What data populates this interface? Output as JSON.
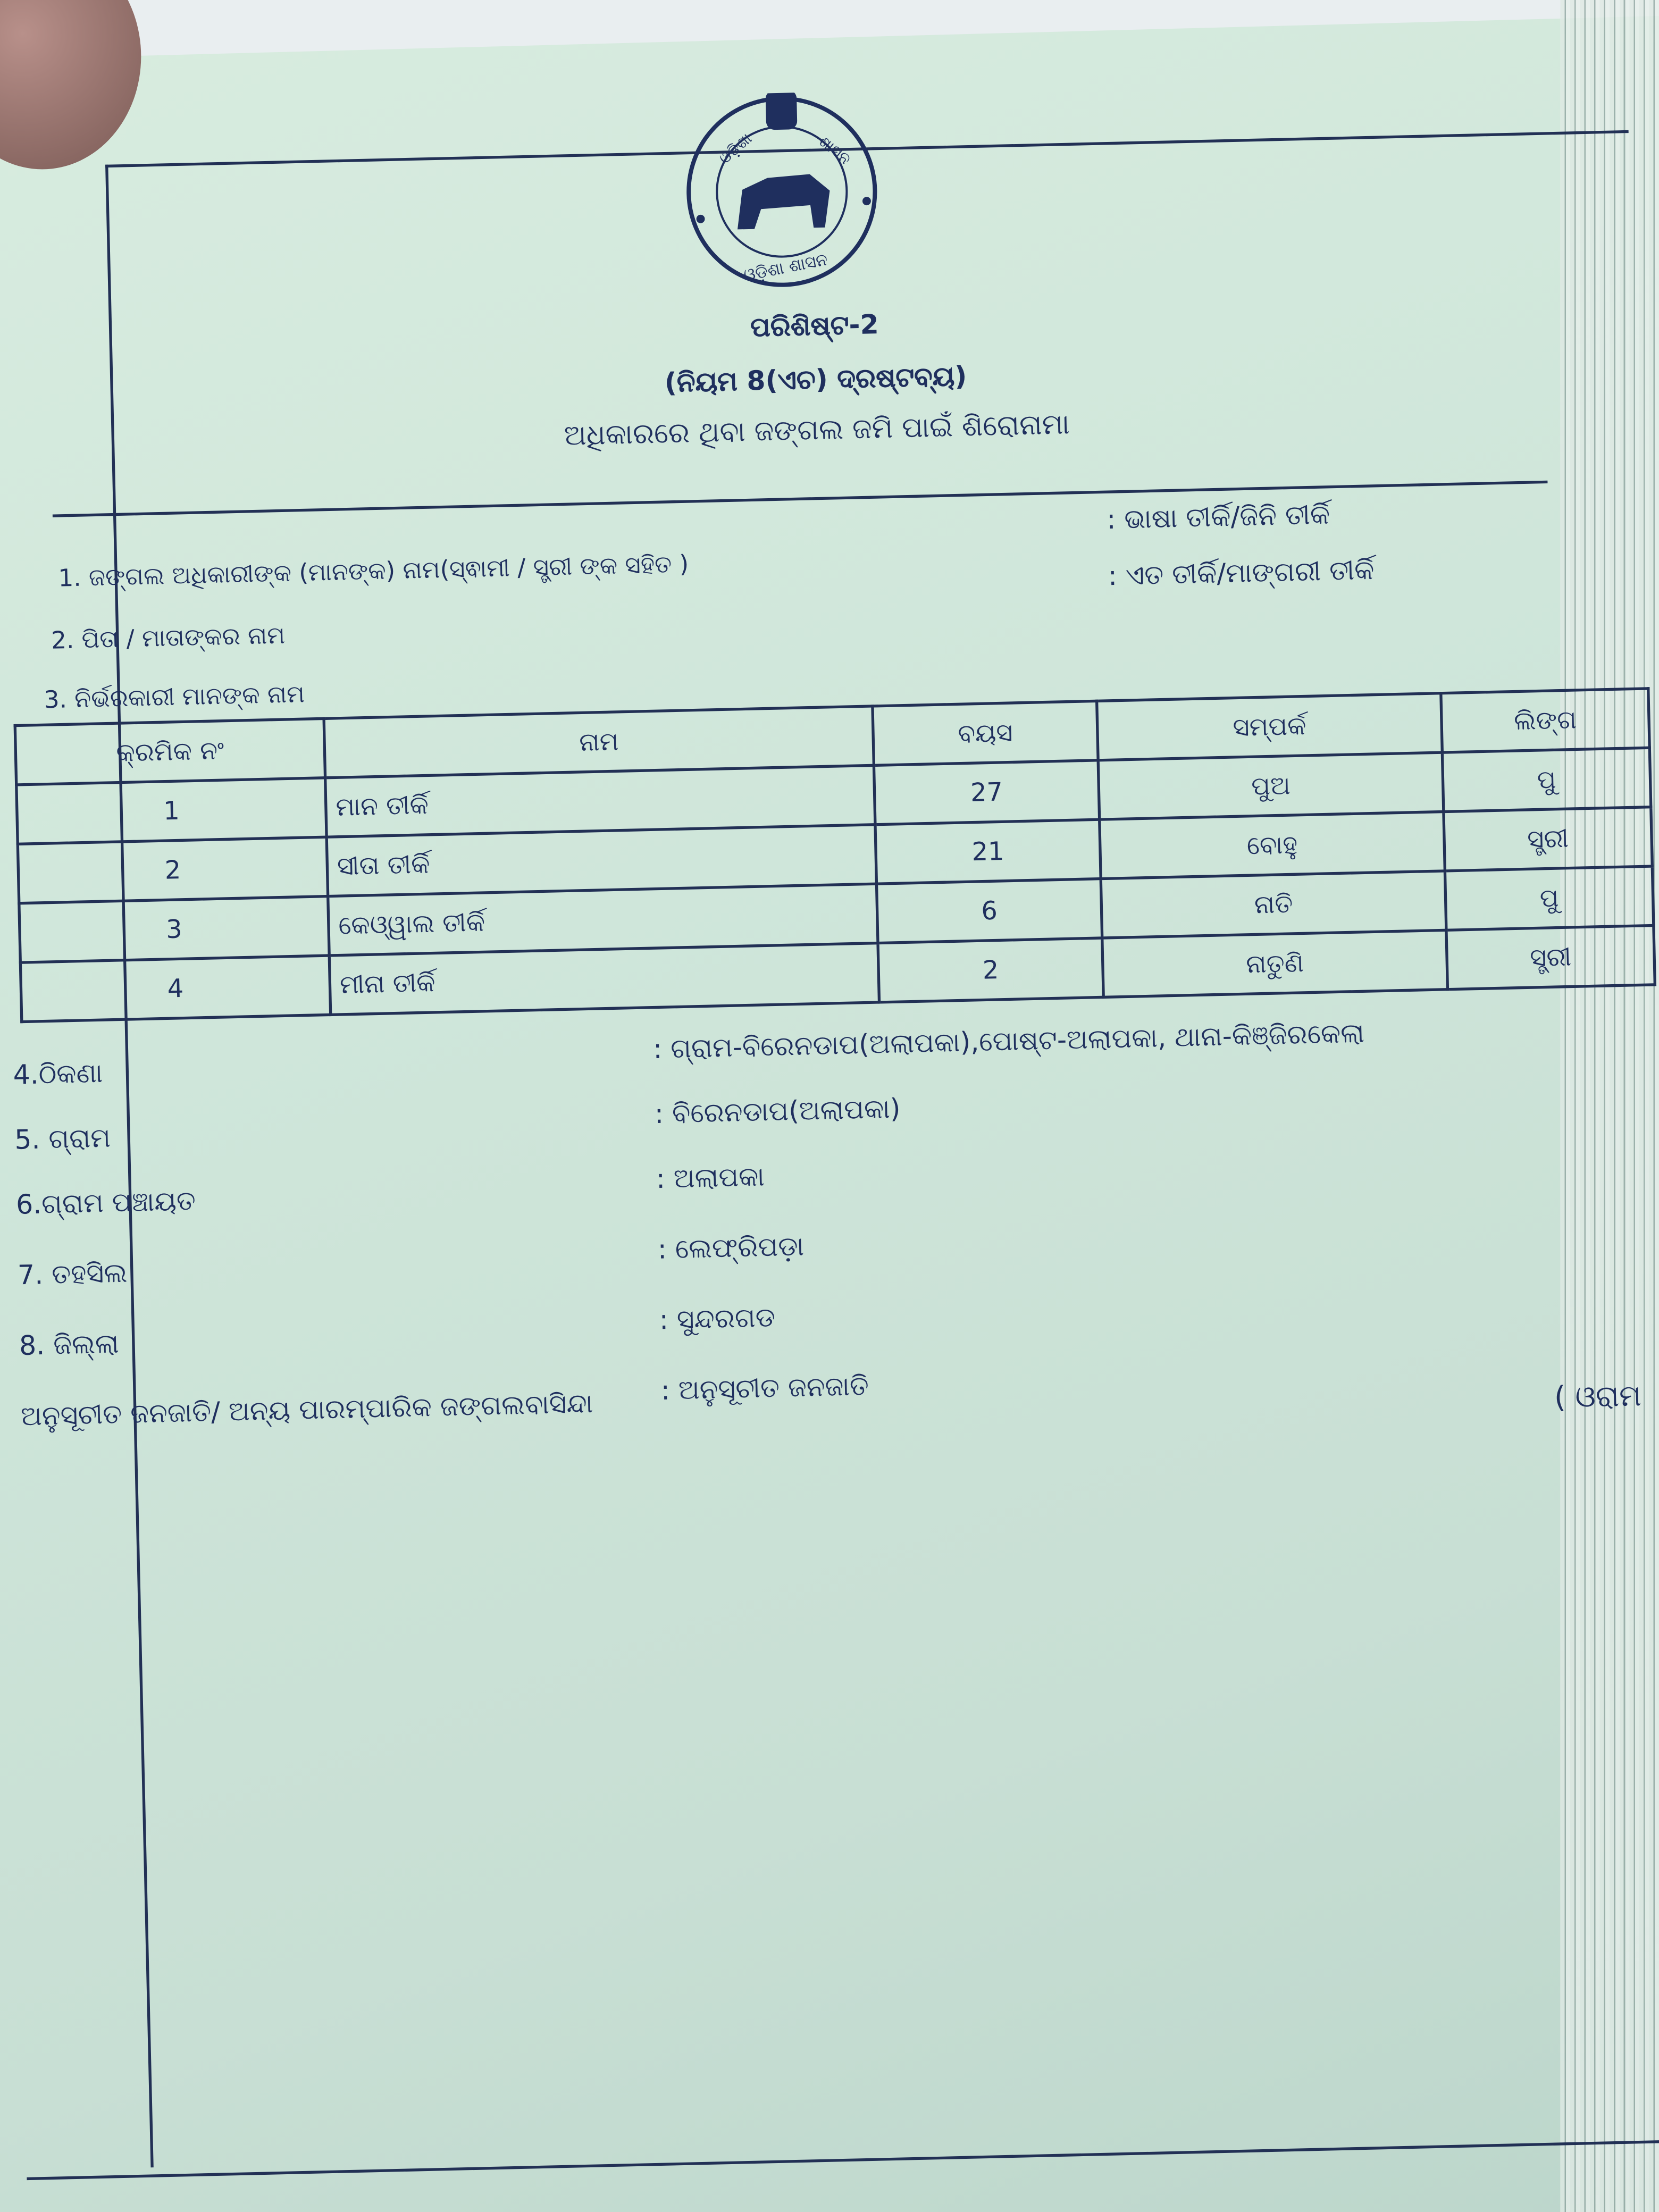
{
  "seal": {
    "top_text": "ଓଡ଼ିଶା ଶାସନ",
    "bottom_text": "ଓଡ଼ିଶା ଶାସନ"
  },
  "header": {
    "appendix": "ପରିଶିଷ୍ଟ-2",
    "rule_ref": "(ନିୟମ 8(ଏଚ) ଦ୍ରଷ୍ଟବ୍ୟ)",
    "title": "ଅଧିକାରରେ ଥିବା ଜଙ୍ଗଲ ଜମି ପାଇଁ ଶିରୋନାମା"
  },
  "fields_top": [
    {
      "label": "1. ଜଙ୍ଗଲ ଅଧିକାରୀଙ୍କ (ମାନଙ୍କ) ନାମ(ସ୍ଵାମୀ / ସ୍ତ୍ରୀ ଙ୍କ ସହିତ )",
      "value": ": ଭାଷା ତୀର୍କି/ଜିନି ତୀର୍କି"
    },
    {
      "label": "2. ପିତା / ମାତାଙ୍କର ନାମ",
      "value": ": ଏତ ତୀର୍କି/ମାଙ୍ଗରୀ ତୀର୍କି"
    },
    {
      "label": "3. ନିର୍ଭରକାରୀ ମାନଙ୍କ ନାମ"
    }
  ],
  "dependents_table": {
    "headers": [
      "କ୍ରମିକ ନଂ",
      "ନାମ",
      "ବୟସ",
      "ସମ୍ପର୍କ",
      "ଲିଙ୍ଗ"
    ],
    "rows": [
      [
        "1",
        "ମାନ ତୀର୍କି",
        "27",
        "ପୁଅ",
        "ପୁ"
      ],
      [
        "2",
        "ସୀତା ତୀର୍କି",
        "21",
        "ବୋହୁ",
        "ସ୍ତ୍ରୀ"
      ],
      [
        "3",
        "କେଓ୍ୱାଲ ତୀର୍କି",
        "6",
        "ନାତି",
        "ପୁ"
      ],
      [
        "4",
        "ମୀନା ତୀର୍କି",
        "2",
        "ନାତୁଣି",
        "ସ୍ତ୍ରୀ"
      ]
    ]
  },
  "fields_bottom": [
    {
      "label": "4.ଠିକଣା",
      "value": ": ଗ୍ରାମ-ବିରେନଡାପ(ଅଲାପକା),ପୋଷ୍ଟ-ଅଲାପକା, ଥାନା-କିଞ୍ଜିରକେଲା"
    },
    {
      "label": "5. ଗ୍ରାମ",
      "value": ": ବିରେନଡାପ(ଅଲାପକା)"
    },
    {
      "label": "6.ଗ୍ରାମ ପଞ୍ଚାୟତ",
      "value": ": ଅଲାପକା"
    },
    {
      "label": "7. ତହସିଲ",
      "value": ": ଲେଫ୍ରିପଡ଼ା"
    },
    {
      "label": "8. ଜିଲ୍ଲା",
      "value": ": ସୁନ୍ଦରଗଡ"
    },
    {
      "label": "ଅନୁସୂଚୀତ ଜନଜାତି/ ଅନ୍ୟ ପାରମ୍ପାରିକ ଜଙ୍ଗଲବାସିନ୍ଦା",
      "value": ": ଅନୁସୂଚୀତ ଜନଜାତି",
      "extra": "( ଓରାମ"
    }
  ]
}
